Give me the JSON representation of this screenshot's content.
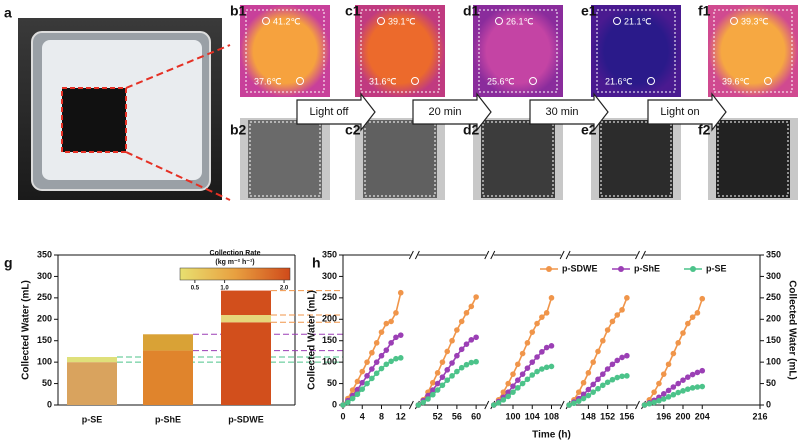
{
  "panels": {
    "a": {
      "label": "a"
    },
    "thermal": [
      {
        "label": "b1",
        "top": "41.2℃",
        "bottom": "37.6℃"
      },
      {
        "label": "c1",
        "top": "39.1℃",
        "bottom": "31.6℃"
      },
      {
        "label": "d1",
        "top": "26.1℃",
        "bottom": "25.6℃"
      },
      {
        "label": "e1",
        "top": "21.1℃",
        "bottom": "21.6℃"
      },
      {
        "label": "f1",
        "top": "39.3℃",
        "bottom": "39.6℃"
      }
    ],
    "photos": [
      {
        "label": "b2"
      },
      {
        "label": "c2"
      },
      {
        "label": "d2"
      },
      {
        "label": "e2"
      },
      {
        "label": "f2"
      }
    ],
    "arrows": [
      "Light off",
      "20 min",
      "30 min",
      "Light on"
    ]
  },
  "chart_data": [
    {
      "type": "stacked-bar",
      "label": "g",
      "categories": [
        "p-SE",
        "p-ShE",
        "p-SDWE"
      ],
      "stacks": [
        {
          "values": [
            100,
            127,
            193
          ],
          "colors": [
            "#d9a35e",
            "#e0842c",
            "#d24f1c"
          ]
        },
        {
          "values": [
            12,
            38,
            17
          ],
          "colors": [
            "#dfe07a",
            "#d9a236",
            "#e6d77a"
          ]
        },
        {
          "values": [
            null,
            null,
            57
          ],
          "colors": [
            null,
            null,
            "#d24f1c"
          ]
        }
      ],
      "ylim": [
        0,
        350
      ],
      "yticks": [
        0,
        50,
        100,
        150,
        200,
        250,
        300,
        350
      ],
      "ylabel": "Collected Water (mL)",
      "guide_colors": [
        "#4cc38a",
        "#9b3fb5",
        "#f0954a"
      ],
      "colorbar": {
        "title": "Collection Rate",
        "unit": "(kg m⁻² h⁻¹)",
        "lim": [
          0.25,
          2.1
        ],
        "ticks": [
          0.5,
          {
            "value": 1,
            "label": "1.0"
          },
          {
            "value": 2,
            "label": "2.0"
          }
        ],
        "colors": [
          "#e8e070",
          "#e8a040",
          "#d04a1a"
        ]
      }
    },
    {
      "type": "line",
      "label": "h",
      "segments": [
        {
          "xlim": [
            0,
            14
          ],
          "xticks": [
            0,
            4,
            8,
            12
          ]
        },
        {
          "xlim": [
            48,
            62
          ],
          "xticks": [
            52,
            56,
            60
          ]
        },
        {
          "xlim": [
            96,
            110
          ],
          "xticks": [
            100,
            104,
            108
          ]
        },
        {
          "xlim": [
            144,
            158
          ],
          "xticks": [
            148,
            152,
            156
          ]
        },
        {
          "xlim": [
            192,
            216
          ],
          "xticks": [
            196,
            200,
            204,
            216
          ]
        }
      ],
      "x": [
        0,
        1,
        2,
        3,
        4,
        5,
        6,
        7,
        8,
        9,
        10,
        11,
        12,
        48,
        49,
        50,
        51,
        52,
        53,
        54,
        55,
        56,
        57,
        58,
        59,
        60,
        96,
        97,
        98,
        99,
        100,
        101,
        102,
        103,
        104,
        105,
        106,
        107,
        108,
        144,
        145,
        146,
        147,
        148,
        149,
        150,
        151,
        152,
        153,
        154,
        155,
        156,
        192,
        193,
        194,
        195,
        196,
        197,
        198,
        199,
        200,
        201,
        202,
        203,
        204
      ],
      "series": [
        {
          "name": "p-SDWE",
          "color": "#f0954a",
          "values": [
            0,
            15,
            35,
            55,
            78,
            100,
            122,
            145,
            170,
            190,
            195,
            215,
            262,
            0,
            12,
            30,
            52,
            75,
            100,
            125,
            150,
            175,
            195,
            215,
            230,
            252,
            0,
            12,
            30,
            50,
            72,
            95,
            120,
            145,
            170,
            190,
            205,
            215,
            250,
            0,
            12,
            30,
            52,
            75,
            100,
            125,
            150,
            175,
            195,
            210,
            222,
            250,
            0,
            12,
            30,
            50,
            72,
            95,
            120,
            145,
            168,
            190,
            205,
            215,
            248
          ]
        },
        {
          "name": "p-ShE",
          "color": "#9b3fb5",
          "values": [
            0,
            10,
            22,
            36,
            52,
            68,
            84,
            100,
            115,
            128,
            145,
            158,
            163,
            0,
            10,
            22,
            35,
            50,
            65,
            82,
            98,
            115,
            130,
            142,
            152,
            158,
            0,
            8,
            18,
            30,
            44,
            58,
            72,
            86,
            100,
            112,
            124,
            134,
            138,
            0,
            7,
            15,
            25,
            36,
            48,
            60,
            72,
            84,
            95,
            104,
            111,
            115,
            0,
            5,
            11,
            18,
            26,
            34,
            42,
            50,
            58,
            65,
            71,
            76,
            80
          ]
        },
        {
          "name": "p-SE",
          "color": "#4cc38a",
          "values": [
            0,
            6,
            15,
            25,
            37,
            50,
            62,
            74,
            85,
            95,
            102,
            108,
            110,
            0,
            6,
            14,
            24,
            35,
            46,
            58,
            68,
            78,
            87,
            94,
            99,
            101,
            0,
            5,
            12,
            20,
            30,
            40,
            50,
            60,
            70,
            78,
            84,
            88,
            90,
            0,
            4,
            9,
            15,
            22,
            30,
            38,
            46,
            53,
            59,
            64,
            67,
            68,
            0,
            3,
            6,
            10,
            14,
            19,
            24,
            29,
            33,
            37,
            40,
            42,
            43
          ]
        }
      ],
      "ylim": [
        0,
        350
      ],
      "yticks": [
        0,
        50,
        100,
        150,
        200,
        250,
        300,
        350
      ],
      "y2lim": [
        0,
        350
      ],
      "y2ticks": [
        0,
        50,
        100,
        150,
        200,
        250,
        300,
        350
      ],
      "xlabel": "Time (h)",
      "ylabel": "Collected Water (mL)",
      "y2label": "Collected Water (mL)",
      "legend": "upper right"
    }
  ]
}
